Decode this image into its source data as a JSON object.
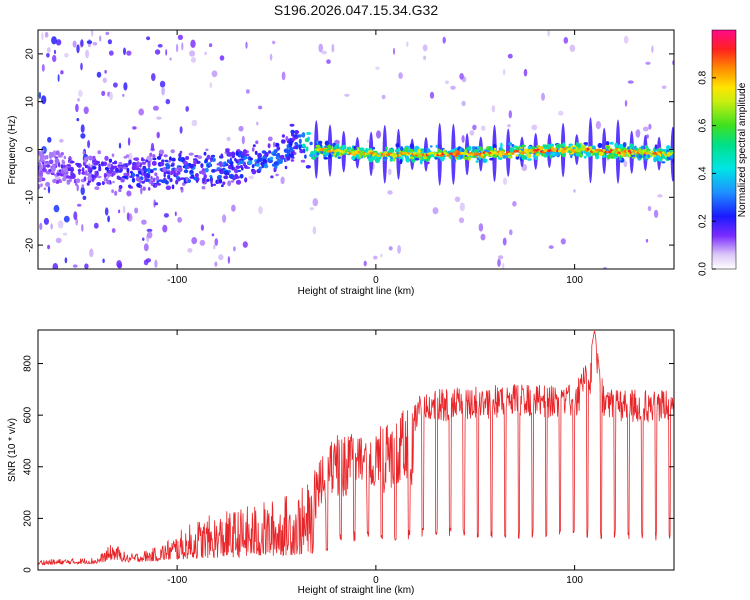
{
  "figure_title": "S196.2026.047.15.34.G32",
  "chart_data": [
    {
      "type": "heatmap",
      "name": "spectrogram",
      "title": "S196.2026.047.15.34.G32",
      "xlabel": "Height of straight line (km)",
      "ylabel": "Frequency (Hz)",
      "xlim": [
        -170,
        150
      ],
      "ylim": [
        -25,
        25
      ],
      "xticks": [
        -100,
        0,
        100
      ],
      "xtick_labels": [
        "-100",
        "0",
        "100"
      ],
      "yticks": [
        -20,
        -10,
        0,
        10,
        20
      ],
      "ytick_labels": [
        "-20",
        "-10",
        "0",
        "10",
        "20"
      ],
      "colorbar": {
        "label": "Normalized spectral amplitude",
        "range": [
          0,
          1
        ],
        "ticks": [
          0.0,
          0.2,
          0.4,
          0.6,
          0.8
        ],
        "tick_labels": [
          "0.0",
          "0.2",
          "0.4",
          "0.6",
          "0.8"
        ],
        "colormap": "rainbow"
      },
      "signal": {
        "description_points": [
          {
            "x": -170,
            "freq": -4,
            "amp": 0.15
          },
          {
            "x": -120,
            "freq": -5,
            "amp": 0.3
          },
          {
            "x": -80,
            "freq": -4,
            "amp": 0.35
          },
          {
            "x": -50,
            "freq": -2,
            "amp": 0.35
          },
          {
            "x": -40,
            "freq": 2,
            "amp": 0.3
          },
          {
            "x": -30,
            "freq": 0,
            "amp": 0.8
          },
          {
            "x": 0,
            "freq": -1,
            "amp": 0.85
          },
          {
            "x": 50,
            "freq": -1,
            "amp": 0.9
          },
          {
            "x": 100,
            "freq": 0,
            "amp": 0.9
          },
          {
            "x": 150,
            "freq": -1,
            "amp": 0.85
          }
        ]
      }
    },
    {
      "type": "line",
      "name": "snr",
      "xlabel": "Height of straight line (km)",
      "ylabel": "SNR (10 * v/v)",
      "xlim": [
        -170,
        150
      ],
      "ylim": [
        0,
        930
      ],
      "xticks": [
        -100,
        0,
        100
      ],
      "xtick_labels": [
        "-100",
        "0",
        "100"
      ],
      "yticks": [
        0,
        200,
        400,
        600,
        800
      ],
      "ytick_labels": [
        "0",
        "200",
        "400",
        "600",
        "800"
      ],
      "series_color": "#e8262a",
      "envelope": {
        "x": [
          -170,
          -140,
          -132,
          -125,
          -110,
          -90,
          -70,
          -50,
          -35,
          -25,
          -20,
          -10,
          0,
          10,
          20,
          25,
          30,
          60,
          100,
          108,
          110,
          115,
          150
        ],
        "low": [
          20,
          25,
          40,
          30,
          35,
          45,
          50,
          55,
          60,
          70,
          100,
          110,
          115,
          110,
          120,
          130,
          125,
          120,
          120,
          120,
          130,
          115,
          110
        ],
        "high": [
          40,
          50,
          110,
          60,
          90,
          200,
          240,
          280,
          330,
          470,
          540,
          530,
          560,
          600,
          650,
          720,
          700,
          720,
          720,
          840,
          930,
          700,
          700
        ]
      }
    }
  ],
  "colors": {
    "line": "#e8262a",
    "axis": "#000000",
    "background": "#ffffff"
  }
}
